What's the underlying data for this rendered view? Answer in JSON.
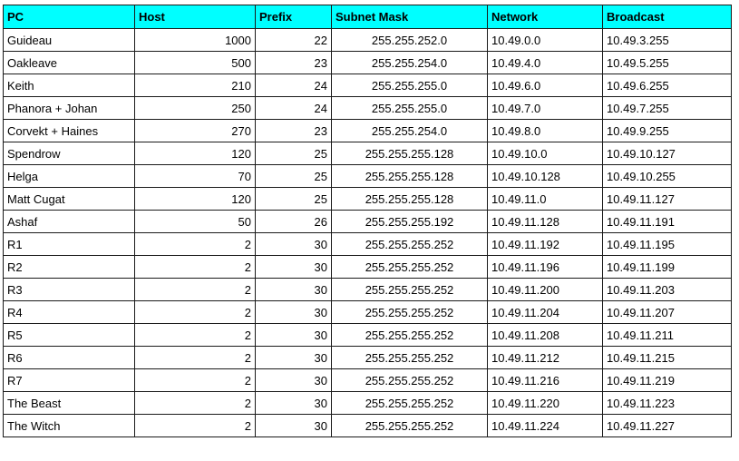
{
  "sheet": {
    "headers": [
      "PC",
      "Host",
      "Prefix",
      "Subnet Mask",
      "Network",
      "Broadcast"
    ],
    "header_bg": "#00ffff",
    "rows": [
      {
        "pc": "Guideau",
        "host": "1000",
        "prefix": "22",
        "mask": "255.255.252.0",
        "network": "10.49.0.0",
        "broadcast": "10.49.3.255"
      },
      {
        "pc": "Oakleave",
        "host": "500",
        "prefix": "23",
        "mask": "255.255.254.0",
        "network": "10.49.4.0",
        "broadcast": "10.49.5.255"
      },
      {
        "pc": "Keith",
        "host": "210",
        "prefix": "24",
        "mask": "255.255.255.0",
        "network": "10.49.6.0",
        "broadcast": "10.49.6.255"
      },
      {
        "pc": "Phanora + Johan",
        "host": "250",
        "prefix": "24",
        "mask": "255.255.255.0",
        "network": "10.49.7.0",
        "broadcast": "10.49.7.255"
      },
      {
        "pc": "Corvekt + Haines",
        "host": "270",
        "prefix": "23",
        "mask": "255.255.254.0",
        "network": "10.49.8.0",
        "broadcast": "10.49.9.255"
      },
      {
        "pc": "Spendrow",
        "host": "120",
        "prefix": "25",
        "mask": "255.255.255.128",
        "network": "10.49.10.0",
        "broadcast": "10.49.10.127"
      },
      {
        "pc": "Helga",
        "host": "70",
        "prefix": "25",
        "mask": "255.255.255.128",
        "network": "10.49.10.128",
        "broadcast": "10.49.10.255"
      },
      {
        "pc": "Matt Cugat",
        "host": "120",
        "prefix": "25",
        "mask": "255.255.255.128",
        "network": "10.49.11.0",
        "broadcast": "10.49.11.127"
      },
      {
        "pc": "Ashaf",
        "host": "50",
        "prefix": "26",
        "mask": "255.255.255.192",
        "network": "10.49.11.128",
        "broadcast": "10.49.11.191"
      },
      {
        "pc": "R1",
        "host": "2",
        "prefix": "30",
        "mask": "255.255.255.252",
        "network": "10.49.11.192",
        "broadcast": "10.49.11.195"
      },
      {
        "pc": "R2",
        "host": "2",
        "prefix": "30",
        "mask": "255.255.255.252",
        "network": "10.49.11.196",
        "broadcast": "10.49.11.199"
      },
      {
        "pc": "R3",
        "host": "2",
        "prefix": "30",
        "mask": "255.255.255.252",
        "network": "10.49.11.200",
        "broadcast": "10.49.11.203"
      },
      {
        "pc": "R4",
        "host": "2",
        "prefix": "30",
        "mask": "255.255.255.252",
        "network": "10.49.11.204",
        "broadcast": "10.49.11.207"
      },
      {
        "pc": "R5",
        "host": "2",
        "prefix": "30",
        "mask": "255.255.255.252",
        "network": "10.49.11.208",
        "broadcast": "10.49.11.211"
      },
      {
        "pc": "R6",
        "host": "2",
        "prefix": "30",
        "mask": "255.255.255.252",
        "network": "10.49.11.212",
        "broadcast": "10.49.11.215"
      },
      {
        "pc": "R7",
        "host": "2",
        "prefix": "30",
        "mask": "255.255.255.252",
        "network": "10.49.11.216",
        "broadcast": "10.49.11.219"
      },
      {
        "pc": "The Beast",
        "host": "2",
        "prefix": "30",
        "mask": "255.255.255.252",
        "network": "10.49.11.220",
        "broadcast": "10.49.11.223"
      },
      {
        "pc": "The Witch",
        "host": "2",
        "prefix": "30",
        "mask": "255.255.255.252",
        "network": "10.49.11.224",
        "broadcast": "10.49.11.227"
      }
    ]
  }
}
